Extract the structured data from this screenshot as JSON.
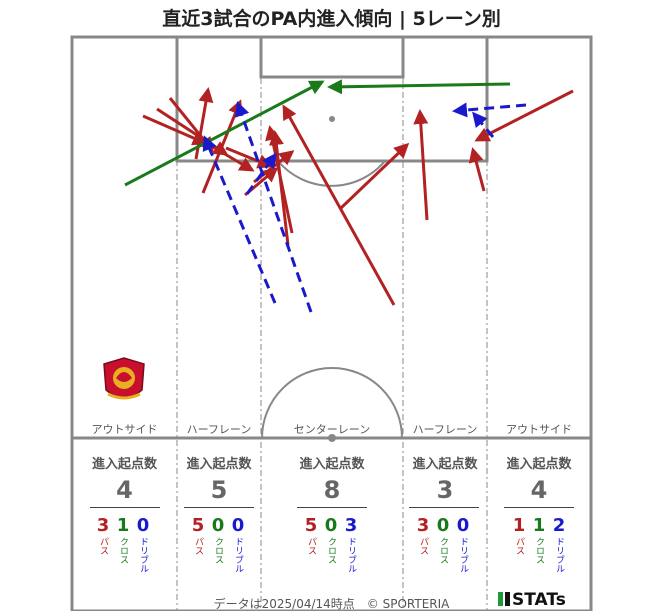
{
  "title": "直近3試合のPA内進入傾向 | 5レーン別",
  "lanes": [
    {
      "label": "アウトサイド",
      "stat_title": "進入起点数",
      "total": "4",
      "pass": "3",
      "cross": "1",
      "dribble": "0"
    },
    {
      "label": "ハーフレーン",
      "stat_title": "進入起点数",
      "total": "5",
      "pass": "5",
      "cross": "0",
      "dribble": "0"
    },
    {
      "label": "センターレーン",
      "stat_title": "進入起点数",
      "total": "8",
      "pass": "5",
      "cross": "0",
      "dribble": "3"
    },
    {
      "label": "ハーフレーン",
      "stat_title": "進入起点数",
      "total": "3",
      "pass": "3",
      "cross": "0",
      "dribble": "0"
    },
    {
      "label": "アウトサイド",
      "stat_title": "進入起点数",
      "total": "4",
      "pass": "1",
      "cross": "1",
      "dribble": "2"
    }
  ],
  "type_labels": {
    "pass": "パス",
    "cross": "クロス",
    "dribble": "ドリブル"
  },
  "colors": {
    "pass": "#b22222",
    "cross": "#1a7a1a",
    "dribble": "#1a1acc",
    "pitch_line": "#888888"
  },
  "footer": "データは2025/04/14時点　© SPORTERIA",
  "brand": "STATs",
  "emblem": "club-crest-icon"
}
